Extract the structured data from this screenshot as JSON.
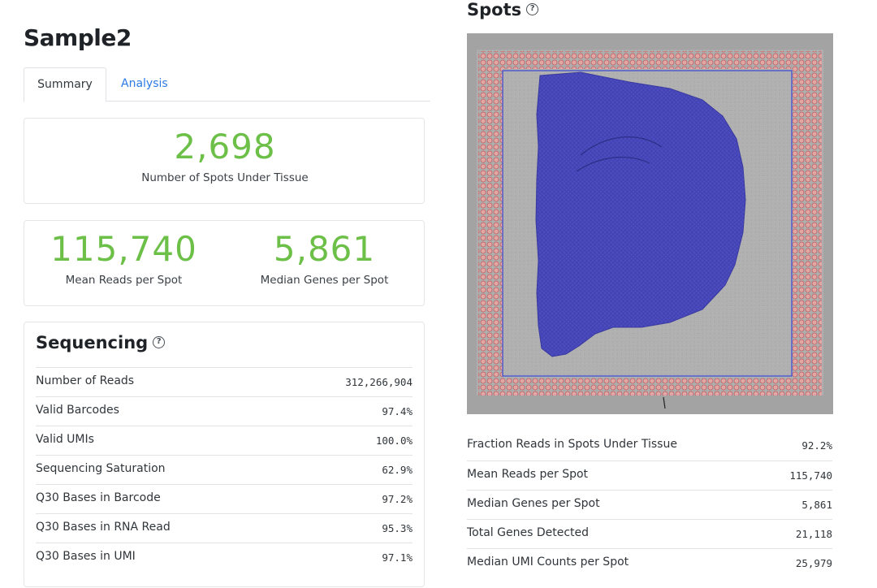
{
  "sample": {
    "title": "Sample2"
  },
  "tabs": [
    {
      "label": "Summary",
      "active": true
    },
    {
      "label": "Analysis",
      "active": false
    }
  ],
  "headline": {
    "spots_under_tissue": {
      "value": "2,698",
      "label": "Number of Spots Under Tissue"
    },
    "mean_reads": {
      "value": "115,740",
      "label": "Mean Reads per Spot"
    },
    "median_genes": {
      "value": "5,861",
      "label": "Median Genes per Spot"
    }
  },
  "sequencing": {
    "title": "Sequencing",
    "help_icon": "question-circle-icon",
    "rows": [
      {
        "label": "Number of Reads",
        "value": "312,266,904"
      },
      {
        "label": "Valid Barcodes",
        "value": "97.4%"
      },
      {
        "label": "Valid UMIs",
        "value": "100.0%"
      },
      {
        "label": "Sequencing Saturation",
        "value": "62.9%"
      },
      {
        "label": "Q30 Bases in Barcode",
        "value": "97.2%"
      },
      {
        "label": "Q30 Bases in RNA Read",
        "value": "95.3%"
      },
      {
        "label": "Q30 Bases in UMI",
        "value": "97.1%"
      }
    ]
  },
  "spots": {
    "title": "Spots",
    "help_icon": "question-circle-icon",
    "image": "tissue-spots-image",
    "rows": [
      {
        "label": "Fraction Reads in Spots Under Tissue",
        "value": "92.2%"
      },
      {
        "label": "Mean Reads per Spot",
        "value": "115,740"
      },
      {
        "label": "Median Genes per Spot",
        "value": "5,861"
      },
      {
        "label": "Total Genes Detected",
        "value": "21,118"
      },
      {
        "label": "Median UMI Counts per Spot",
        "value": "25,979"
      }
    ]
  },
  "colors": {
    "accent_green": "#6cbf47",
    "link_blue": "#2c7be5",
    "tissue_spot_blue": "#4a4ac4",
    "fiducial_red": "#d98a8a"
  }
}
